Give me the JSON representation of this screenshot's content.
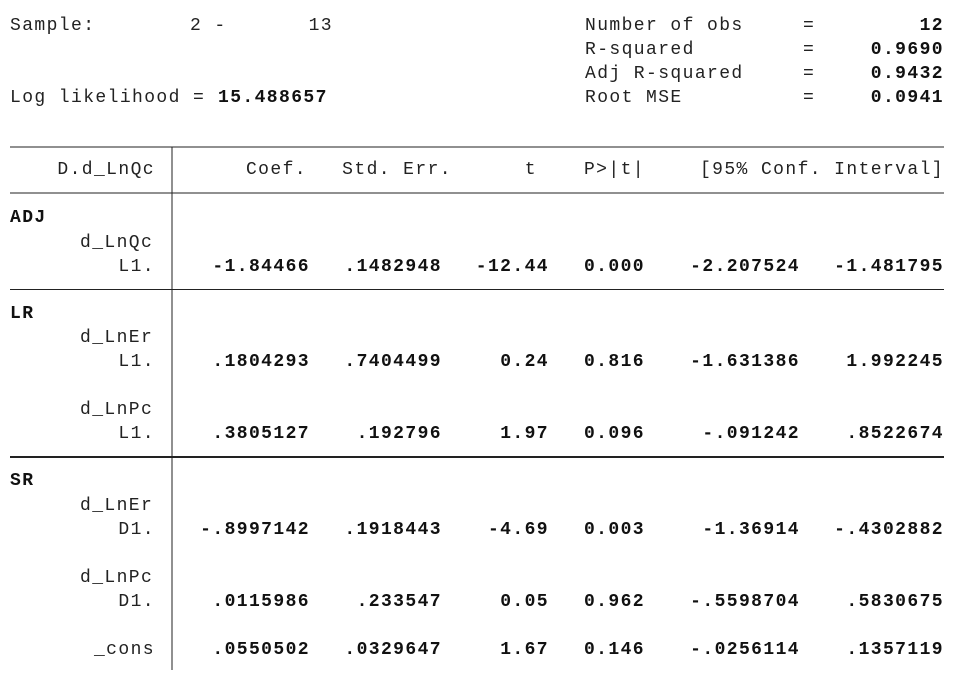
{
  "header": {
    "sample_label": "Sample:",
    "sample_start": "2 -",
    "sample_end": "13",
    "log_likelihood_label": "Log likelihood =",
    "log_likelihood": "15.488657",
    "stats": [
      [
        "Number of obs",
        "=",
        "12"
      ],
      [
        "R-squared",
        "=",
        "0.9690"
      ],
      [
        "Adj R-squared",
        "=",
        "0.9432"
      ],
      [
        "Root MSE",
        "=",
        "0.0941"
      ]
    ]
  },
  "table": {
    "columns": [
      "D.d_LnQc",
      "Coef.",
      "Std. Err.",
      "t",
      "P>|t|",
      "[95% Conf. Interval]"
    ],
    "sections": [
      {
        "name": "ADJ",
        "items": [
          {
            "var": "d_LnQc",
            "lag": "L1.",
            "values": [
              "-1.84466",
              ".1482948",
              "-12.44",
              "0.000",
              "-2.207524",
              "-1.481795"
            ]
          }
        ]
      },
      {
        "name": "LR",
        "items": [
          {
            "var": "d_LnEr",
            "lag": "L1.",
            "values": [
              ".1804293",
              ".7404499",
              "0.24",
              "0.816",
              "-1.631386",
              "1.992245"
            ]
          },
          {
            "var": "d_LnPc",
            "lag": "L1.",
            "values": [
              ".3805127",
              ".192796",
              "1.97",
              "0.096",
              "-.091242",
              ".8522674"
            ]
          }
        ]
      },
      {
        "name": "SR",
        "items": [
          {
            "var": "d_LnEr",
            "lag": "D1.",
            "values": [
              "-.8997142",
              ".1918443",
              "-4.69",
              "0.003",
              "-1.36914",
              "-.4302882"
            ]
          },
          {
            "var": "d_LnPc",
            "lag": "D1.",
            "values": [
              ".0115986",
              ".233547",
              "0.05",
              "0.962",
              "-.5598704",
              ".5830675"
            ]
          },
          {
            "var": "_cons",
            "values": [
              ".0550502",
              ".0329647",
              "1.67",
              "0.146",
              "-.0256114",
              ".1357119"
            ]
          }
        ]
      }
    ]
  }
}
